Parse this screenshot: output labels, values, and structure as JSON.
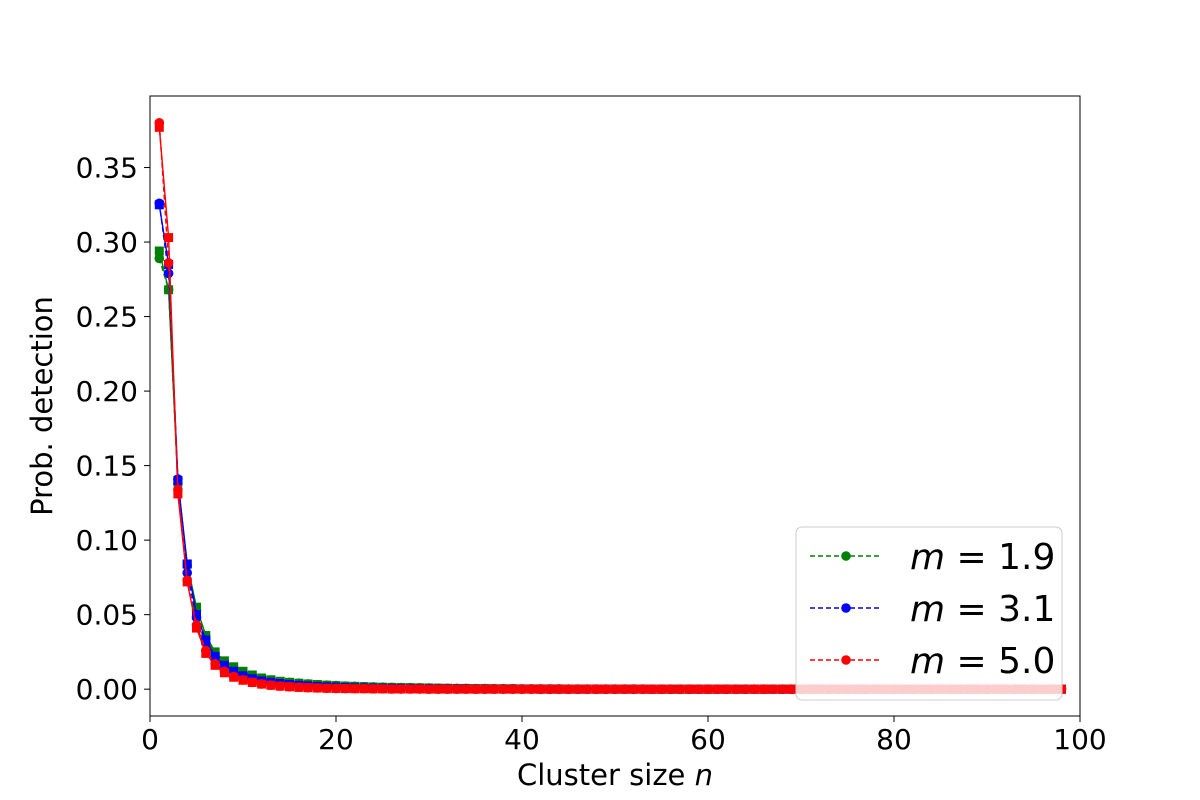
{
  "chart_data": {
    "type": "line",
    "title": "",
    "xlabel": {
      "text": "Cluster size ",
      "var": "n"
    },
    "ylabel": "Prob. detection",
    "xlim": [
      0,
      100
    ],
    "ylim": [
      -0.018,
      0.398
    ],
    "x_ticks": [
      0,
      20,
      40,
      60,
      80,
      100
    ],
    "x_tick_labels": [
      "0",
      "20",
      "40",
      "60",
      "80",
      "100"
    ],
    "y_ticks": [
      0.0,
      0.05,
      0.1,
      0.15,
      0.2,
      0.25,
      0.3,
      0.35
    ],
    "y_tick_labels": [
      "0.00",
      "0.05",
      "0.10",
      "0.15",
      "0.20",
      "0.25",
      "0.30",
      "0.35"
    ],
    "grid": false,
    "legend_position": "lower-right",
    "x": [
      1,
      2,
      3,
      4,
      5,
      6,
      7,
      8,
      9,
      10,
      11,
      12,
      13,
      14,
      15,
      16,
      17,
      18,
      19,
      20,
      21,
      22,
      23,
      24,
      25,
      26,
      27,
      28,
      29,
      30,
      31,
      32,
      33,
      34,
      35,
      36,
      37,
      38,
      39,
      40,
      41,
      42,
      43,
      44,
      45,
      46,
      47,
      48,
      49,
      50,
      51,
      52,
      53,
      54,
      55,
      56,
      57,
      58,
      59,
      60,
      61,
      62,
      63,
      64,
      65,
      66,
      67,
      68,
      69,
      70,
      71,
      72,
      73,
      74,
      75,
      76,
      77,
      78,
      79,
      80,
      81,
      82,
      83,
      84,
      85,
      86,
      87,
      88,
      89,
      90,
      91,
      92,
      93,
      94,
      95,
      96,
      97,
      98
    ],
    "series": [
      {
        "name": "m = 1.9",
        "legend": {
          "var": "m",
          "rel": " = ",
          "val": "1.9"
        },
        "color": "#008000",
        "circle_values": [
          0.289,
          0.268,
          0.138,
          0.083,
          0.053,
          0.034,
          0.024,
          0.018,
          0.014,
          0.011,
          0.009,
          0.007,
          0.006,
          0.005,
          0.0045,
          0.004,
          0.0035,
          0.003,
          0.0027,
          0.0024,
          0.0021,
          0.0019,
          0.0017,
          0.0015,
          0.0013,
          0.0012,
          0.0011,
          0.001,
          0.0009,
          0.0008,
          0.0007,
          0.0006,
          0.0005,
          0.0005,
          0.0004,
          0.0004,
          0.0003,
          0.0003,
          0.0003,
          0.0002,
          0.0002,
          0.0002,
          0.0002,
          0.0002,
          0.0001,
          0.0001,
          0.0001,
          0.0001,
          0.0001,
          0.0001,
          0.0001,
          0.0001,
          0.0001,
          0,
          0,
          0,
          0,
          0,
          0,
          0,
          0,
          0,
          0,
          0,
          0,
          0,
          0,
          0,
          0,
          0,
          0,
          0,
          0,
          0,
          0,
          0,
          0,
          0,
          0,
          0,
          0,
          0,
          0,
          0,
          0,
          0,
          0,
          0,
          0,
          0,
          0,
          0,
          0,
          0,
          0,
          0,
          0,
          0
        ],
        "square_values": [
          0.294,
          0.268,
          0.139,
          0.084,
          0.055,
          0.036,
          0.025,
          0.019,
          0.015,
          0.012,
          0.0095,
          0.0075,
          0.0063,
          0.0053,
          0.0046,
          0.004,
          0.0035,
          0.0031,
          0.0027,
          0.0024,
          0.0021,
          0.0019,
          0.0017,
          0.0015,
          0.0013,
          0.0012,
          0.0011,
          0.001,
          0.0009,
          0.0008,
          0.0007,
          0.0006,
          0.0005,
          0.0005,
          0.0004,
          0.0004,
          0.0003,
          0.0003,
          0.0003,
          0.0002,
          0.0002,
          0.0002,
          0.0002,
          0.0002,
          0.0001,
          0.0001,
          0.0001,
          0.0001,
          0.0001,
          0.0001,
          0.0001,
          0.0001,
          0.0001,
          0,
          0,
          0,
          0,
          0,
          0,
          0,
          0,
          0,
          0,
          0,
          0,
          0,
          0,
          0,
          0,
          0,
          0,
          0,
          0,
          0,
          0,
          0,
          0,
          0,
          0,
          0,
          0,
          0,
          0,
          0,
          0,
          0,
          0,
          0,
          0,
          0,
          0,
          0,
          0,
          0,
          0,
          0,
          0,
          0
        ]
      },
      {
        "name": "m = 3.1",
        "legend": {
          "var": "m",
          "rel": " = ",
          "val": "3.1"
        },
        "color": "#0000ff",
        "circle_values": [
          0.326,
          0.279,
          0.141,
          0.078,
          0.048,
          0.031,
          0.021,
          0.015,
          0.011,
          0.0085,
          0.0067,
          0.0054,
          0.0044,
          0.0036,
          0.003,
          0.0025,
          0.0021,
          0.0018,
          0.0015,
          0.0013,
          0.0011,
          0.0009,
          0.0008,
          0.0007,
          0.0006,
          0.0005,
          0.0004,
          0.0004,
          0.0003,
          0.0003,
          0.0002,
          0.0002,
          0.0002,
          0.0002,
          0.0001,
          0.0001,
          0.0001,
          0.0001,
          0.0001,
          0.0001,
          0.0001,
          0,
          0,
          0,
          0,
          0,
          0,
          0,
          0,
          0,
          0,
          0,
          0,
          0,
          0,
          0,
          0,
          0,
          0,
          0,
          0,
          0,
          0,
          0,
          0,
          0,
          0,
          0,
          0,
          0,
          0,
          0,
          0,
          0,
          0,
          0,
          0,
          0,
          0,
          0,
          0,
          0,
          0,
          0,
          0,
          0,
          0,
          0,
          0,
          0,
          0,
          0,
          0,
          0,
          0,
          0,
          0,
          0
        ],
        "square_values": [
          0.325,
          0.285,
          0.14,
          0.084,
          0.05,
          0.033,
          0.022,
          0.016,
          0.012,
          0.009,
          0.007,
          0.0056,
          0.0046,
          0.0038,
          0.0031,
          0.0026,
          0.0022,
          0.0018,
          0.0015,
          0.0013,
          0.0011,
          0.0009,
          0.0008,
          0.0007,
          0.0006,
          0.0005,
          0.0004,
          0.0004,
          0.0003,
          0.0003,
          0.0002,
          0.0002,
          0.0002,
          0.0002,
          0.0001,
          0.0001,
          0.0001,
          0.0001,
          0.0001,
          0.0001,
          0.0001,
          0,
          0,
          0,
          0,
          0,
          0,
          0,
          0,
          0,
          0,
          0,
          0,
          0,
          0,
          0,
          0,
          0,
          0,
          0,
          0,
          0,
          0,
          0,
          0,
          0,
          0,
          0,
          0,
          0,
          0,
          0,
          0,
          0,
          0,
          0,
          0,
          0,
          0,
          0,
          0,
          0,
          0,
          0,
          0,
          0,
          0,
          0,
          0,
          0,
          0,
          0,
          0,
          0,
          0,
          0,
          0,
          0
        ]
      },
      {
        "name": "m = 5.0",
        "legend": {
          "var": "m",
          "rel": " = ",
          "val": "5.0"
        },
        "color": "#ff0000",
        "circle_values": [
          0.38,
          0.286,
          0.134,
          0.073,
          0.043,
          0.026,
          0.017,
          0.012,
          0.0085,
          0.0062,
          0.0046,
          0.0035,
          0.0027,
          0.0021,
          0.0016,
          0.0013,
          0.001,
          0.0008,
          0.0006,
          0.0005,
          0.0004,
          0.0003,
          0.0003,
          0.0002,
          0.0002,
          0.0001,
          0.0001,
          0.0001,
          0.0001,
          0,
          0,
          0,
          0,
          0,
          0,
          0,
          0,
          0,
          0,
          0,
          0,
          0,
          0,
          0,
          0,
          0,
          0,
          0,
          0,
          0,
          0,
          0,
          0,
          0,
          0,
          0,
          0,
          0,
          0,
          0,
          0,
          0,
          0,
          0,
          0,
          0,
          0,
          0,
          0,
          0,
          0,
          0,
          0,
          0,
          0,
          0,
          0,
          0,
          0,
          0,
          0,
          0,
          0,
          0,
          0,
          0,
          0,
          0,
          0,
          0,
          0,
          0,
          0,
          0,
          0,
          0,
          0,
          0
        ],
        "square_values": [
          0.377,
          0.303,
          0.131,
          0.072,
          0.041,
          0.024,
          0.016,
          0.011,
          0.008,
          0.006,
          0.0045,
          0.0034,
          0.0026,
          0.002,
          0.0016,
          0.0012,
          0.001,
          0.0008,
          0.0006,
          0.0005,
          0.0004,
          0.0003,
          0.0003,
          0.0002,
          0.0002,
          0.0001,
          0.0001,
          0.0001,
          0.0001,
          0,
          0,
          0,
          0,
          0,
          0,
          0,
          0,
          0,
          0,
          0,
          0,
          0,
          0,
          0,
          0,
          0,
          0,
          0,
          0,
          0,
          0,
          0,
          0,
          0,
          0,
          0,
          0,
          0,
          0,
          0,
          0,
          0,
          0,
          0,
          0,
          0,
          0,
          0,
          0,
          0,
          0,
          0,
          0,
          0,
          0,
          0,
          0,
          0,
          0,
          0,
          0,
          0,
          0,
          0,
          0,
          0,
          0,
          0,
          0,
          0,
          0,
          0,
          0,
          0,
          0,
          0,
          0,
          0
        ]
      }
    ]
  }
}
